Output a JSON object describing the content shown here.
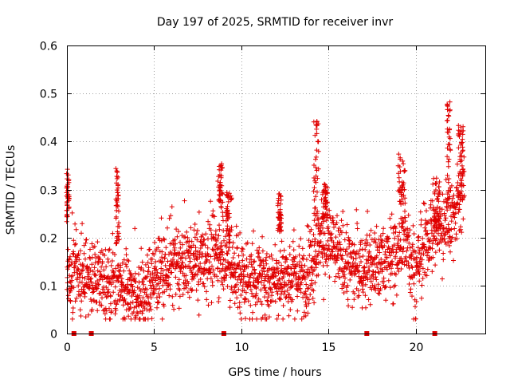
{
  "chart_data": {
    "type": "scatter",
    "title": "Day 197 of 2025, SRMTID for receiver invr",
    "xlabel": "GPS time / hours",
    "ylabel": "SRMTID / TECUs",
    "xlim": [
      0,
      24
    ],
    "ylim": [
      0,
      0.6
    ],
    "x_ticks": [
      0,
      5,
      10,
      15,
      20
    ],
    "y_ticks": [
      0,
      0.1,
      0.2,
      0.3,
      0.4,
      0.5,
      0.6
    ],
    "x_tick_labels": [
      "0",
      "5",
      "10",
      "15",
      "20"
    ],
    "y_tick_labels": [
      "0",
      "0.1",
      "0.2",
      "0.3",
      "0.4",
      "0.5",
      "0.6"
    ],
    "grid": true,
    "marker": "+",
    "color": "#e00000",
    "x_range_data": [
      0,
      22.8
    ],
    "trend_x": [
      0,
      0.5,
      1,
      2,
      3,
      3.5,
      4,
      4.5,
      5,
      6,
      7,
      8,
      8.5,
      9,
      9.5,
      10,
      11,
      12,
      13,
      13.5,
      14,
      14.5,
      15,
      16,
      17,
      18,
      19,
      19.5,
      20,
      20.5,
      21,
      21.5,
      22,
      22.5,
      22.8
    ],
    "trend_y": [
      0.12,
      0.14,
      0.12,
      0.11,
      0.12,
      0.1,
      0.08,
      0.075,
      0.12,
      0.14,
      0.15,
      0.15,
      0.17,
      0.17,
      0.14,
      0.12,
      0.11,
      0.12,
      0.12,
      0.11,
      0.14,
      0.2,
      0.19,
      0.15,
      0.13,
      0.15,
      0.17,
      0.2,
      0.12,
      0.18,
      0.21,
      0.22,
      0.24,
      0.28,
      0.3
    ],
    "spread": 0.04,
    "n_points": 2200,
    "bursts": [
      {
        "x": 0.05,
        "y": 0.3,
        "w": 0.15,
        "amp": 0.07
      },
      {
        "x": 2.9,
        "y": 0.28,
        "w": 0.2,
        "amp": 0.1
      },
      {
        "x": 8.8,
        "y": 0.31,
        "w": 0.3,
        "amp": 0.07
      },
      {
        "x": 9.3,
        "y": 0.26,
        "w": 0.3,
        "amp": 0.06
      },
      {
        "x": 12.2,
        "y": 0.26,
        "w": 0.2,
        "amp": 0.05
      },
      {
        "x": 14.3,
        "y": 0.36,
        "w": 0.3,
        "amp": 0.13
      },
      {
        "x": 14.8,
        "y": 0.28,
        "w": 0.3,
        "amp": 0.05
      },
      {
        "x": 19.2,
        "y": 0.33,
        "w": 0.4,
        "amp": 0.07
      },
      {
        "x": 21.2,
        "y": 0.28,
        "w": 0.4,
        "amp": 0.07
      },
      {
        "x": 21.9,
        "y": 0.4,
        "w": 0.2,
        "amp": 0.13
      },
      {
        "x": 22.6,
        "y": 0.38,
        "w": 0.3,
        "amp": 0.1
      }
    ],
    "zero_points_x": [
      0.4,
      1.4,
      9.0,
      17.2,
      21.1
    ]
  }
}
